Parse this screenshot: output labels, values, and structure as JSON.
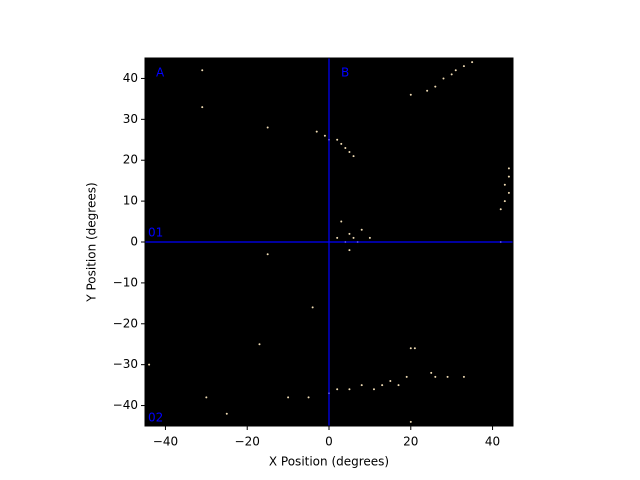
{
  "chart_data": {
    "type": "scatter",
    "xlabel": "X Position (degrees)",
    "ylabel": "Y Position (degrees)",
    "background": "#000000",
    "color": "#f0dcb4",
    "xlim": [
      -45,
      45
    ],
    "ylim": [
      -45,
      45
    ],
    "xticks": [
      {
        "value": -40,
        "label": "−40"
      },
      {
        "value": -20,
        "label": "−20"
      },
      0,
      20,
      40
    ],
    "yticks": [
      {
        "value": -40,
        "label": "−40"
      },
      {
        "value": -30,
        "label": "−30"
      },
      {
        "value": -20,
        "label": "−20"
      },
      {
        "value": -10,
        "label": "−10"
      },
      0,
      10,
      20,
      30,
      40
    ],
    "crosshair": {
      "x": 0,
      "y": 0,
      "color": "#0000ff"
    },
    "annotations": [
      "A",
      "B",
      "01",
      "02"
    ],
    "x": [
      28,
      30,
      31,
      33,
      35,
      26,
      24,
      20,
      -31,
      -31,
      -15,
      -3,
      0,
      2,
      3,
      4,
      5,
      6,
      -1,
      44,
      44,
      43,
      44,
      43,
      42,
      42,
      2,
      4,
      5,
      6,
      7,
      8,
      5,
      3,
      10,
      -15,
      -4,
      -17,
      -44,
      0,
      2,
      5,
      8,
      11,
      13,
      15,
      17,
      19,
      20,
      21,
      25,
      26,
      29,
      33,
      20,
      -30,
      -25,
      -10,
      -5
    ],
    "values": [
      40,
      41,
      42,
      43,
      44,
      38,
      37,
      36,
      42,
      33,
      28,
      27,
      25,
      25,
      24,
      23,
      22,
      21,
      26,
      18,
      16,
      14,
      12,
      10,
      8,
      0,
      1,
      0,
      2,
      1,
      0,
      3,
      -2,
      5,
      1,
      -3,
      -16,
      -25,
      -30,
      -37,
      -36,
      -36,
      -35,
      -36,
      -35,
      -34,
      -35,
      -33,
      -26,
      -26,
      -32,
      -33,
      -33,
      -33,
      -44,
      -38,
      -42,
      -38,
      -38
    ]
  }
}
